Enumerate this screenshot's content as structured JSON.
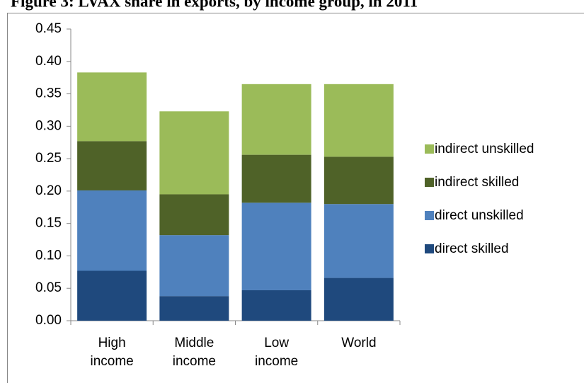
{
  "chart_data": {
    "type": "stacked_bar",
    "title": "Figure 3: LVAX share in exports, by income group, in 2011",
    "categories": [
      "High income",
      "Middle income",
      "Low income",
      "World"
    ],
    "series": [
      {
        "name": "direct skilled",
        "color": "#1f497d",
        "values": [
          0.077,
          0.038,
          0.047,
          0.066
        ]
      },
      {
        "name": "direct unskilled",
        "color": "#4f81bd",
        "values": [
          0.124,
          0.094,
          0.135,
          0.114
        ]
      },
      {
        "name": "indirect skilled",
        "color": "#4f6228",
        "values": [
          0.076,
          0.063,
          0.074,
          0.073
        ]
      },
      {
        "name": "indirect unskilled",
        "color": "#9bbb59",
        "values": [
          0.106,
          0.128,
          0.109,
          0.112
        ]
      }
    ],
    "ylim": [
      0,
      0.45
    ],
    "yticks": [
      {
        "value": 0,
        "label": "0.00"
      },
      {
        "value": 0.05,
        "label": "0.05"
      },
      {
        "value": 0.1,
        "label": "0.10"
      },
      {
        "value": 0.15,
        "label": "0.15"
      },
      {
        "value": 0.2,
        "label": "0.20"
      },
      {
        "value": 0.25,
        "label": "0.25"
      },
      {
        "value": 0.3,
        "label": "0.30"
      },
      {
        "value": 0.35,
        "label": "0.35"
      },
      {
        "value": 0.4,
        "label": "0.40"
      },
      {
        "value": 0.45,
        "label": "0.45"
      }
    ],
    "legend": "right"
  }
}
